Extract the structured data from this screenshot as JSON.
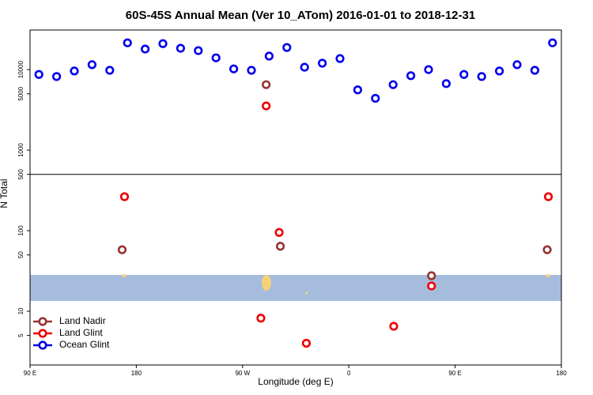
{
  "chart_data": {
    "type": "scatter",
    "title": "60S-45S Annual Mean (Ver 10_ATom)   2016-01-01 to 2018-12-31",
    "xlabel": "Longitude (deg E)",
    "ylabel": "N Total",
    "log_y": true,
    "xlim": [
      90,
      540
    ],
    "ylim": [
      2.15,
      31000
    ],
    "xticks": [
      {
        "value": 90,
        "label": "90 E"
      },
      {
        "value": 180,
        "label": "180"
      },
      {
        "value": 270,
        "label": "90 W"
      },
      {
        "value": 360,
        "label": "0"
      },
      {
        "value": 450,
        "label": "90 E"
      },
      {
        "value": 540,
        "label": "180"
      }
    ],
    "yticks": [
      5,
      10,
      50,
      100,
      500,
      1000,
      5000,
      10000
    ],
    "hline": 500,
    "legend": "lower left",
    "series": [
      {
        "name": "Land Nadir",
        "color": "#993333",
        "x": [
          290,
          168,
          302,
          430,
          528
        ],
        "values": [
          6500,
          58,
          64,
          27.6,
          58
        ]
      },
      {
        "name": "Land Glint",
        "color": "#ee0000",
        "x": [
          290,
          170,
          301,
          430,
          529,
          285.5,
          398,
          324
        ],
        "values": [
          3540,
          264,
          95,
          20.6,
          264,
          8.2,
          6.5,
          4.0
        ]
      },
      {
        "name": "Ocean Glint",
        "color": "#0000ee",
        "x": [
          97.5,
          112.5,
          127.5,
          142.5,
          157.5,
          172.5,
          187.5,
          202.5,
          217.5,
          232.5,
          247.5,
          262.5,
          277.5,
          292.5,
          307.5,
          322.5,
          337.5,
          352.5,
          367.5,
          382.5,
          397.5,
          412.5,
          427.5,
          442.5,
          457.5,
          472.5,
          487.5,
          502.5,
          517.5,
          532.5
        ],
        "values": [
          8700,
          8200,
          9600,
          11500,
          9800,
          21500,
          18000,
          21000,
          18400,
          17200,
          14000,
          10200,
          9800,
          14700,
          18800,
          10700,
          12000,
          13700,
          5600,
          4400,
          6500,
          8400,
          10000,
          6700,
          8700,
          8200,
          9600,
          11500,
          9800,
          21500
        ]
      }
    ]
  }
}
